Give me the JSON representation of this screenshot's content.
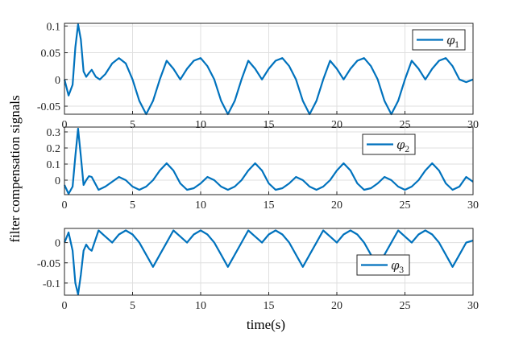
{
  "figure": {
    "ylabel": "filter compensation signals",
    "xlabel": "time(s)"
  },
  "colors": {
    "series": "#0072BD",
    "grid": "#dfdfdf",
    "axis": "#262626"
  },
  "chart_data": [
    {
      "type": "line",
      "legend": {
        "symbol": "φ",
        "subscript": "1",
        "position": "top-right"
      },
      "xlim": [
        0,
        30
      ],
      "ylim": [
        -0.065,
        0.105
      ],
      "xticks": [
        "0",
        "5",
        "10",
        "15",
        "20",
        "25",
        "30"
      ],
      "yticks": [
        "-0.05",
        "0",
        "0.05",
        "0.1"
      ],
      "ytick_values": [
        -0.05,
        0,
        0.05,
        0.1
      ],
      "grid": true,
      "series": [
        {
          "x": [
            0,
            0.3,
            0.6,
            0.8,
            1.0,
            1.2,
            1.4,
            1.6,
            1.8,
            2.0,
            2.3,
            2.6,
            3.0,
            3.5,
            4.0,
            4.5,
            5.0,
            5.5,
            6.0,
            6.5,
            7.0,
            7.5,
            8.0,
            8.5,
            9.0,
            9.5,
            10.0,
            10.5,
            11.0,
            11.5,
            12.0,
            12.5,
            13.0,
            13.5,
            14.0,
            14.5,
            15.0,
            15.5,
            16.0,
            16.5,
            17.0,
            17.5,
            18.0,
            18.5,
            19.0,
            19.5,
            20.0,
            20.5,
            21.0,
            21.5,
            22.0,
            22.5,
            23.0,
            23.5,
            24.0,
            24.5,
            25.0,
            25.5,
            26.0,
            26.5,
            27.0,
            27.5,
            28.0,
            28.5,
            29.0,
            29.5,
            30.0
          ],
          "y": [
            0,
            -0.03,
            -0.01,
            0.06,
            0.103,
            0.075,
            0.015,
            0.005,
            0.012,
            0.018,
            0.005,
            0.0,
            0.01,
            0.03,
            0.04,
            0.03,
            0.0,
            -0.04,
            -0.065,
            -0.04,
            0.0,
            0.035,
            0.02,
            0.0,
            0.02,
            0.035,
            0.04,
            0.025,
            0.0,
            -0.04,
            -0.065,
            -0.04,
            0.0,
            0.035,
            0.02,
            0.0,
            0.02,
            0.035,
            0.04,
            0.025,
            0.0,
            -0.04,
            -0.065,
            -0.04,
            0.0,
            0.035,
            0.02,
            0.0,
            0.02,
            0.035,
            0.04,
            0.025,
            0.0,
            -0.04,
            -0.065,
            -0.04,
            0.0,
            0.035,
            0.02,
            0.0,
            0.02,
            0.035,
            0.04,
            0.025,
            0.0,
            -0.005,
            0.0
          ]
        }
      ]
    },
    {
      "type": "line",
      "legend": {
        "symbol": "φ",
        "subscript": "2",
        "position": "top-right"
      },
      "xlim": [
        0,
        30
      ],
      "ylim": [
        -0.09,
        0.33
      ],
      "xticks": [
        "0",
        "5",
        "10",
        "15",
        "20",
        "25",
        "30"
      ],
      "yticks": [
        "0",
        "0.1",
        "0.2",
        "0.3"
      ],
      "ytick_values": [
        0,
        0.1,
        0.2,
        0.3
      ],
      "grid": true,
      "series": [
        {
          "x": [
            0,
            0.3,
            0.6,
            0.8,
            1.0,
            1.2,
            1.4,
            1.6,
            1.8,
            2.0,
            2.5,
            3.0,
            3.5,
            4.0,
            4.5,
            5.0,
            5.5,
            6.0,
            6.5,
            7.0,
            7.5,
            8.0,
            8.5,
            9.0,
            9.5,
            10.0,
            10.5,
            11.0,
            11.5,
            12.0,
            12.5,
            13.0,
            13.5,
            14.0,
            14.5,
            15.0,
            15.5,
            16.0,
            16.5,
            17.0,
            17.5,
            18.0,
            18.5,
            19.0,
            19.5,
            20.0,
            20.5,
            21.0,
            21.5,
            22.0,
            22.5,
            23.0,
            23.5,
            24.0,
            24.5,
            25.0,
            25.5,
            26.0,
            26.5,
            27.0,
            27.5,
            28.0,
            28.5,
            29.0,
            29.5,
            30.0
          ],
          "y": [
            -0.03,
            -0.085,
            -0.04,
            0.15,
            0.32,
            0.15,
            -0.03,
            0.0,
            0.025,
            0.02,
            -0.06,
            -0.04,
            -0.01,
            0.02,
            0.0,
            -0.04,
            -0.06,
            -0.04,
            0.0,
            0.06,
            0.105,
            0.06,
            -0.02,
            -0.06,
            -0.05,
            -0.02,
            0.02,
            0.0,
            -0.04,
            -0.06,
            -0.04,
            0.0,
            0.06,
            0.105,
            0.06,
            -0.02,
            -0.06,
            -0.05,
            -0.02,
            0.02,
            0.0,
            -0.04,
            -0.06,
            -0.04,
            0.0,
            0.06,
            0.105,
            0.06,
            -0.02,
            -0.06,
            -0.05,
            -0.02,
            0.02,
            0.0,
            -0.04,
            -0.06,
            -0.04,
            0.0,
            0.06,
            0.105,
            0.06,
            -0.02,
            -0.06,
            -0.04,
            0.02,
            -0.01
          ]
        }
      ]
    },
    {
      "type": "line",
      "legend": {
        "symbol": "φ",
        "subscript": "3",
        "position": "bottom-right"
      },
      "xlim": [
        0,
        30
      ],
      "ylim": [
        -0.13,
        0.035
      ],
      "xticks": [
        "0",
        "5",
        "10",
        "15",
        "20",
        "25",
        "30"
      ],
      "yticks": [
        "-0.1",
        "-0.05",
        "0"
      ],
      "ytick_values": [
        -0.1,
        -0.05,
        0
      ],
      "grid": true,
      "series": [
        {
          "x": [
            0,
            0.3,
            0.6,
            0.8,
            1.0,
            1.2,
            1.4,
            1.6,
            1.8,
            2.0,
            2.5,
            3.0,
            3.5,
            4.0,
            4.5,
            5.0,
            5.5,
            6.0,
            6.5,
            7.0,
            7.5,
            8.0,
            8.5,
            9.0,
            9.5,
            10.0,
            10.5,
            11.0,
            11.5,
            12.0,
            12.5,
            13.0,
            13.5,
            14.0,
            14.5,
            15.0,
            15.5,
            16.0,
            16.5,
            17.0,
            17.5,
            18.0,
            18.5,
            19.0,
            19.5,
            20.0,
            20.5,
            21.0,
            21.5,
            22.0,
            22.5,
            23.0,
            23.5,
            24.0,
            24.5,
            25.0,
            25.5,
            26.0,
            26.5,
            27.0,
            27.5,
            28.0,
            28.5,
            29.0,
            29.5,
            30.0
          ],
          "y": [
            0.0,
            0.025,
            -0.02,
            -0.1,
            -0.128,
            -0.08,
            -0.02,
            -0.005,
            -0.015,
            -0.02,
            0.03,
            0.015,
            0.0,
            0.02,
            0.03,
            0.02,
            0.0,
            -0.03,
            -0.06,
            -0.03,
            0.0,
            0.03,
            0.015,
            0.0,
            0.02,
            0.03,
            0.02,
            0.0,
            -0.03,
            -0.06,
            -0.03,
            0.0,
            0.03,
            0.015,
            0.0,
            0.02,
            0.03,
            0.02,
            0.0,
            -0.03,
            -0.06,
            -0.03,
            0.0,
            0.03,
            0.015,
            0.0,
            0.02,
            0.03,
            0.02,
            0.0,
            -0.03,
            -0.06,
            -0.03,
            0.0,
            0.03,
            0.015,
            0.0,
            0.02,
            0.03,
            0.02,
            0.0,
            -0.03,
            -0.06,
            -0.03,
            0.0,
            0.005
          ]
        }
      ]
    }
  ]
}
